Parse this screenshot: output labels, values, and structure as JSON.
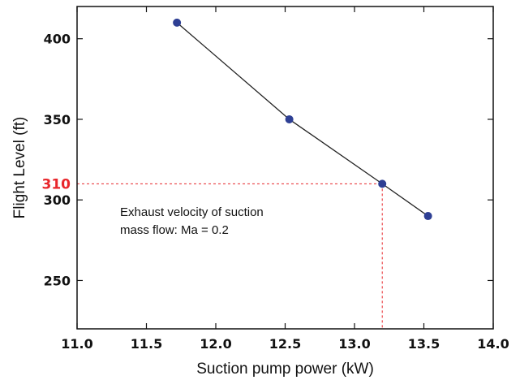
{
  "chart_data": {
    "type": "line",
    "title": "",
    "xlabel": "Suction pump power (kW)",
    "ylabel": "Flight Level (ft)",
    "xlim": [
      11.0,
      14.0
    ],
    "ylim": [
      220,
      420
    ],
    "xticks": [
      11.0,
      11.5,
      12.0,
      12.5,
      13.0,
      13.5,
      14.0
    ],
    "xtick_labels": [
      "11.0",
      "11.5",
      "12.0",
      "12.5",
      "13.0",
      "13.5",
      "14.0"
    ],
    "yticks": [
      250,
      300,
      350,
      400
    ],
    "ytick_labels": [
      "250",
      "300",
      "350",
      "400"
    ],
    "grid": false,
    "series": [
      {
        "x": [
          11.72,
          12.53,
          13.2,
          13.53
        ],
        "y": [
          410,
          350,
          310,
          290
        ],
        "color": "#2e3f94",
        "line_color": "#222222"
      }
    ],
    "annotations": [
      {
        "lines": [
          "Exhaust velocity of suction",
          "mass flow: Ma = 0.2"
        ]
      }
    ],
    "reference": {
      "y_value": 310,
      "x_value": 13.2,
      "label": "310",
      "color": "#e8262b"
    }
  }
}
